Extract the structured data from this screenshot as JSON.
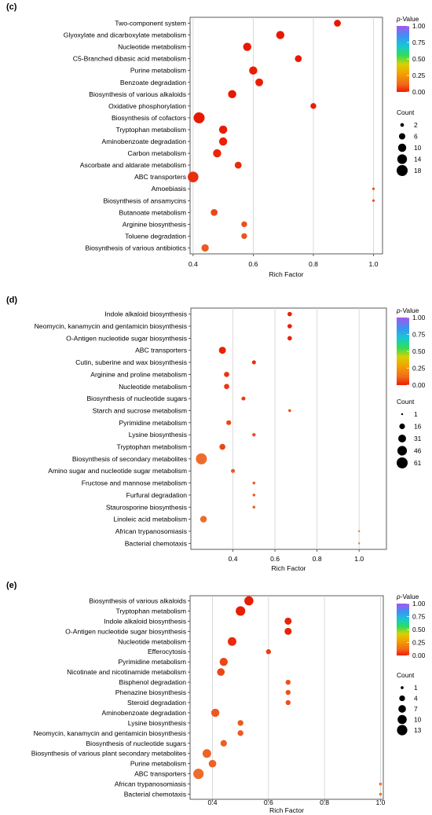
{
  "chart_data": [
    {
      "type": "scatter",
      "panel_label": "(c)",
      "xlabel": "Rich Factor",
      "xlim": [
        0.39,
        1.03
      ],
      "xticks": [
        0.4,
        0.6,
        0.8,
        1.0
      ],
      "xtick_labels": [
        "0.4",
        "0.6",
        "0.8",
        "1.0"
      ],
      "grid": "vertical",
      "categories": [
        "Two-component system",
        "Glyoxylate and dicarboxylate metabolism",
        "Nucleotide metabolism",
        "C5-Branched dibasic acid metabolism",
        "Purine metabolism",
        "Benzoate degradation",
        "Biosynthesis of various alkaloids",
        "Oxidative phosphorylation",
        "Biosynthesis of cofactors",
        "Tryptophan metabolism",
        "Aminobenzoate degradation",
        "Carbon metabolism",
        "Ascorbate and aldarate metabolism",
        "ABC transporters",
        "Amoebiasis",
        "Biosynthesis of ansamycins",
        "Butanoate metabolism",
        "Arginine biosynthesis",
        "Toluene degradation",
        "Biosynthesis of various antibiotics"
      ],
      "rich_factor": [
        0.88,
        0.69,
        0.58,
        0.75,
        0.6,
        0.62,
        0.53,
        0.8,
        0.42,
        0.5,
        0.5,
        0.48,
        0.55,
        0.4,
        1.0,
        1.0,
        0.47,
        0.57,
        0.57,
        0.44
      ],
      "count": [
        7,
        10,
        10,
        7,
        10,
        9,
        10,
        5,
        18,
        10,
        10,
        10,
        7,
        17,
        1,
        1,
        7,
        5,
        5,
        8
      ],
      "p_value": [
        0.0,
        0.0,
        0.0,
        0.0,
        0.01,
        0.01,
        0.0,
        0.01,
        0.0,
        0.01,
        0.02,
        0.03,
        0.04,
        0.05,
        0.12,
        0.13,
        0.1,
        0.12,
        0.13,
        0.14
      ],
      "color_legend": {
        "title": "p-Value",
        "ticks": [
          "0.00",
          "0.25",
          "0.50",
          "0.75",
          "1.00"
        ],
        "range": [
          0,
          1
        ]
      },
      "size_legend": {
        "title": "Count",
        "values": [
          2,
          6,
          10,
          14,
          18
        ],
        "max": 18
      }
    },
    {
      "type": "scatter",
      "panel_label": "(d)",
      "xlabel": "Rich Factor",
      "xlim": [
        0.2,
        1.13
      ],
      "xticks": [
        0.4,
        0.6,
        0.8,
        1.0
      ],
      "xtick_labels": [
        "0.4",
        "0.6",
        "0.8",
        "1.0"
      ],
      "grid": "vertical",
      "categories": [
        "Indole alkaloid biosynthesis",
        "Neomycin, kanamycin and gentamicin biosynthesis",
        "O-Antigen nucleotide sugar biosynthesis",
        "ABC transporters",
        "Cutin, suberine and wax biosynthesis",
        "Arginine and proline metabolism",
        "Nucleotide metabolism",
        "Biosynthesis of nucleotide sugars",
        "Starch and sucrose metabolism",
        "Pyrimidine metabolism",
        "Lysine biosynthesis",
        "Tryptophan metabolism",
        "Biosynthesis of secondary metabolites",
        "Amino sugar and nucleotide sugar metabolism",
        "Fructose and mannose metabolism",
        "Furfural degradation",
        "Staurosporine biosynthesis",
        "Linoleic acid metabolism",
        "African trypanosomiasis",
        "Bacterial chemotaxis"
      ],
      "rich_factor": [
        0.67,
        0.67,
        0.67,
        0.35,
        0.5,
        0.37,
        0.37,
        0.45,
        0.67,
        0.38,
        0.5,
        0.35,
        0.25,
        0.4,
        0.5,
        0.5,
        0.5,
        0.26,
        1.0,
        1.0
      ],
      "count": [
        10,
        10,
        10,
        25,
        8,
        14,
        14,
        8,
        4,
        12,
        6,
        18,
        61,
        8,
        4,
        4,
        4,
        22,
        1,
        1
      ],
      "p_value": [
        0.02,
        0.02,
        0.02,
        0.02,
        0.05,
        0.06,
        0.07,
        0.08,
        0.12,
        0.1,
        0.12,
        0.1,
        0.18,
        0.14,
        0.15,
        0.15,
        0.15,
        0.18,
        0.2,
        0.2
      ],
      "color_legend": {
        "title": "p-Value",
        "ticks": [
          "0.00",
          "0.25",
          "0.50",
          "0.75",
          "1.00"
        ],
        "range": [
          0,
          1
        ]
      },
      "size_legend": {
        "title": "Count",
        "values": [
          1,
          16,
          31,
          46,
          61
        ],
        "max": 61
      }
    },
    {
      "type": "scatter",
      "panel_label": "(e)",
      "xlabel": "Rich Factor",
      "xlim": [
        0.32,
        1.01
      ],
      "xticks": [
        0.4,
        0.6,
        0.8,
        1.0
      ],
      "xtick_labels": [
        "0.4",
        "0.6",
        "0.8",
        "1.0"
      ],
      "grid": "vertical",
      "categories": [
        "Biosynthesis of various alkaloids",
        "Tryptophan metabolism",
        "Indole alkaloid biosynthesis",
        "O-Antigen nucleotide sugar biosynthesis",
        "Nucleotide metabolism",
        "Efferocytosis",
        "Pyrimidine metabolism",
        "Nicotinate and nicotinamide metabolism",
        "Bisphenol degradation",
        "Phenazine biosynthesis",
        "Steroid degradation",
        "Aminobenzoate degradation",
        "Lysine biosynthesis",
        "Neomycin, kanamycin and gentamicin biosynthesis",
        "Biosynthesis of nucleotide sugars",
        "Biosynthesis of various plant secondary metabolites",
        "Purine metabolism",
        "ABC transporters",
        "African trypanosomiasis",
        "Bacterial chemotaxis"
      ],
      "rich_factor": [
        0.53,
        0.5,
        0.67,
        0.67,
        0.47,
        0.6,
        0.44,
        0.43,
        0.67,
        0.67,
        0.67,
        0.41,
        0.5,
        0.5,
        0.44,
        0.38,
        0.4,
        0.35,
        1.0,
        1.0
      ],
      "count": [
        10,
        11,
        6,
        6,
        9,
        3,
        8,
        7,
        3,
        3,
        3,
        8,
        4,
        4,
        5,
        9,
        7,
        13,
        1,
        1
      ],
      "p_value": [
        0.01,
        0.01,
        0.02,
        0.02,
        0.04,
        0.08,
        0.1,
        0.1,
        0.12,
        0.12,
        0.12,
        0.14,
        0.14,
        0.14,
        0.15,
        0.16,
        0.16,
        0.18,
        0.2,
        0.2
      ],
      "color_legend": {
        "title": "p-Value",
        "ticks": [
          "0.00",
          "0.25",
          "0.50",
          "0.75",
          "1.00"
        ],
        "range": [
          0,
          1
        ]
      },
      "size_legend": {
        "title": "Count",
        "values": [
          1,
          4,
          7,
          10,
          13
        ],
        "max": 13
      }
    }
  ]
}
